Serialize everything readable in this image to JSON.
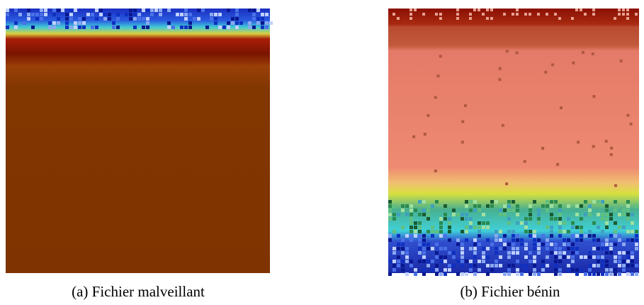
{
  "figures": [
    {
      "caption": "(a) Fichier malveillant"
    },
    {
      "caption": "(b) Fichier bénin"
    }
  ]
}
